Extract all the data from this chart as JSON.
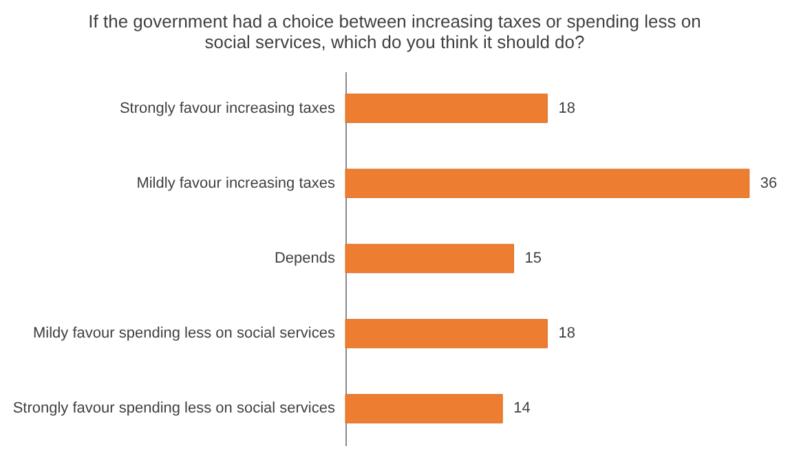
{
  "chart_data": {
    "type": "bar",
    "orientation": "horizontal",
    "title": "If the government had a choice between increasing taxes or spending less on social services, which do you think it should do?",
    "categories": [
      "Strongly favour increasing taxes",
      "Mildly favour increasing taxes",
      "Depends",
      "Mildy favour spending less on social services",
      "Strongly favour spending less on social services"
    ],
    "values": [
      18,
      36,
      15,
      18,
      14
    ],
    "color": "#ed7d31",
    "data_labels": true,
    "grid": false
  }
}
